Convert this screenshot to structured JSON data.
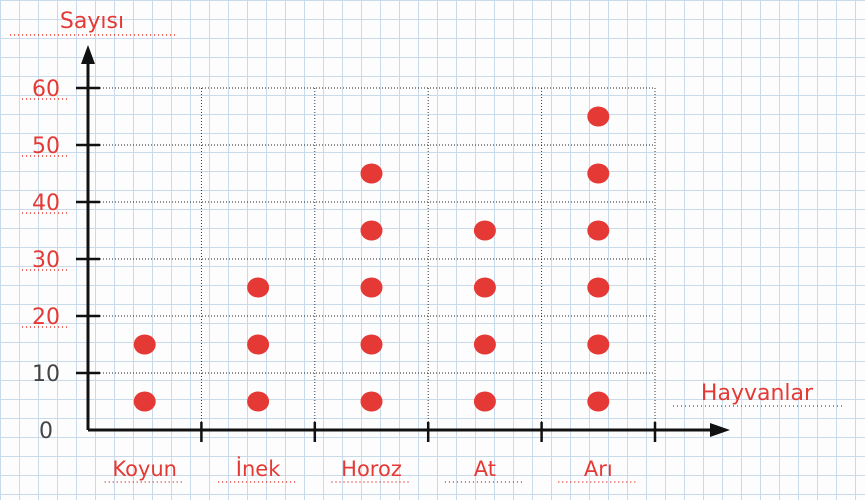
{
  "chart_data": {
    "type": "scatter",
    "title": "",
    "ylabel": "Sayısı",
    "xlabel": "Hayvanlar",
    "categories": [
      "Koyun",
      "İnek",
      "Horoz",
      "At",
      "Arı"
    ],
    "y_ticks": [
      "0",
      "10",
      "20",
      "30",
      "40",
      "50",
      "60"
    ],
    "ylim": [
      0,
      60
    ],
    "grid": true,
    "point_values": [
      [
        5,
        15
      ],
      [
        5,
        15,
        25
      ],
      [
        5,
        15,
        25,
        35,
        45
      ],
      [
        5,
        15,
        25,
        35
      ],
      [
        5,
        15,
        25,
        35,
        45,
        55
      ]
    ],
    "colors": {
      "points": "#e53935",
      "labels": "#e53935",
      "axis": "#111111"
    }
  }
}
